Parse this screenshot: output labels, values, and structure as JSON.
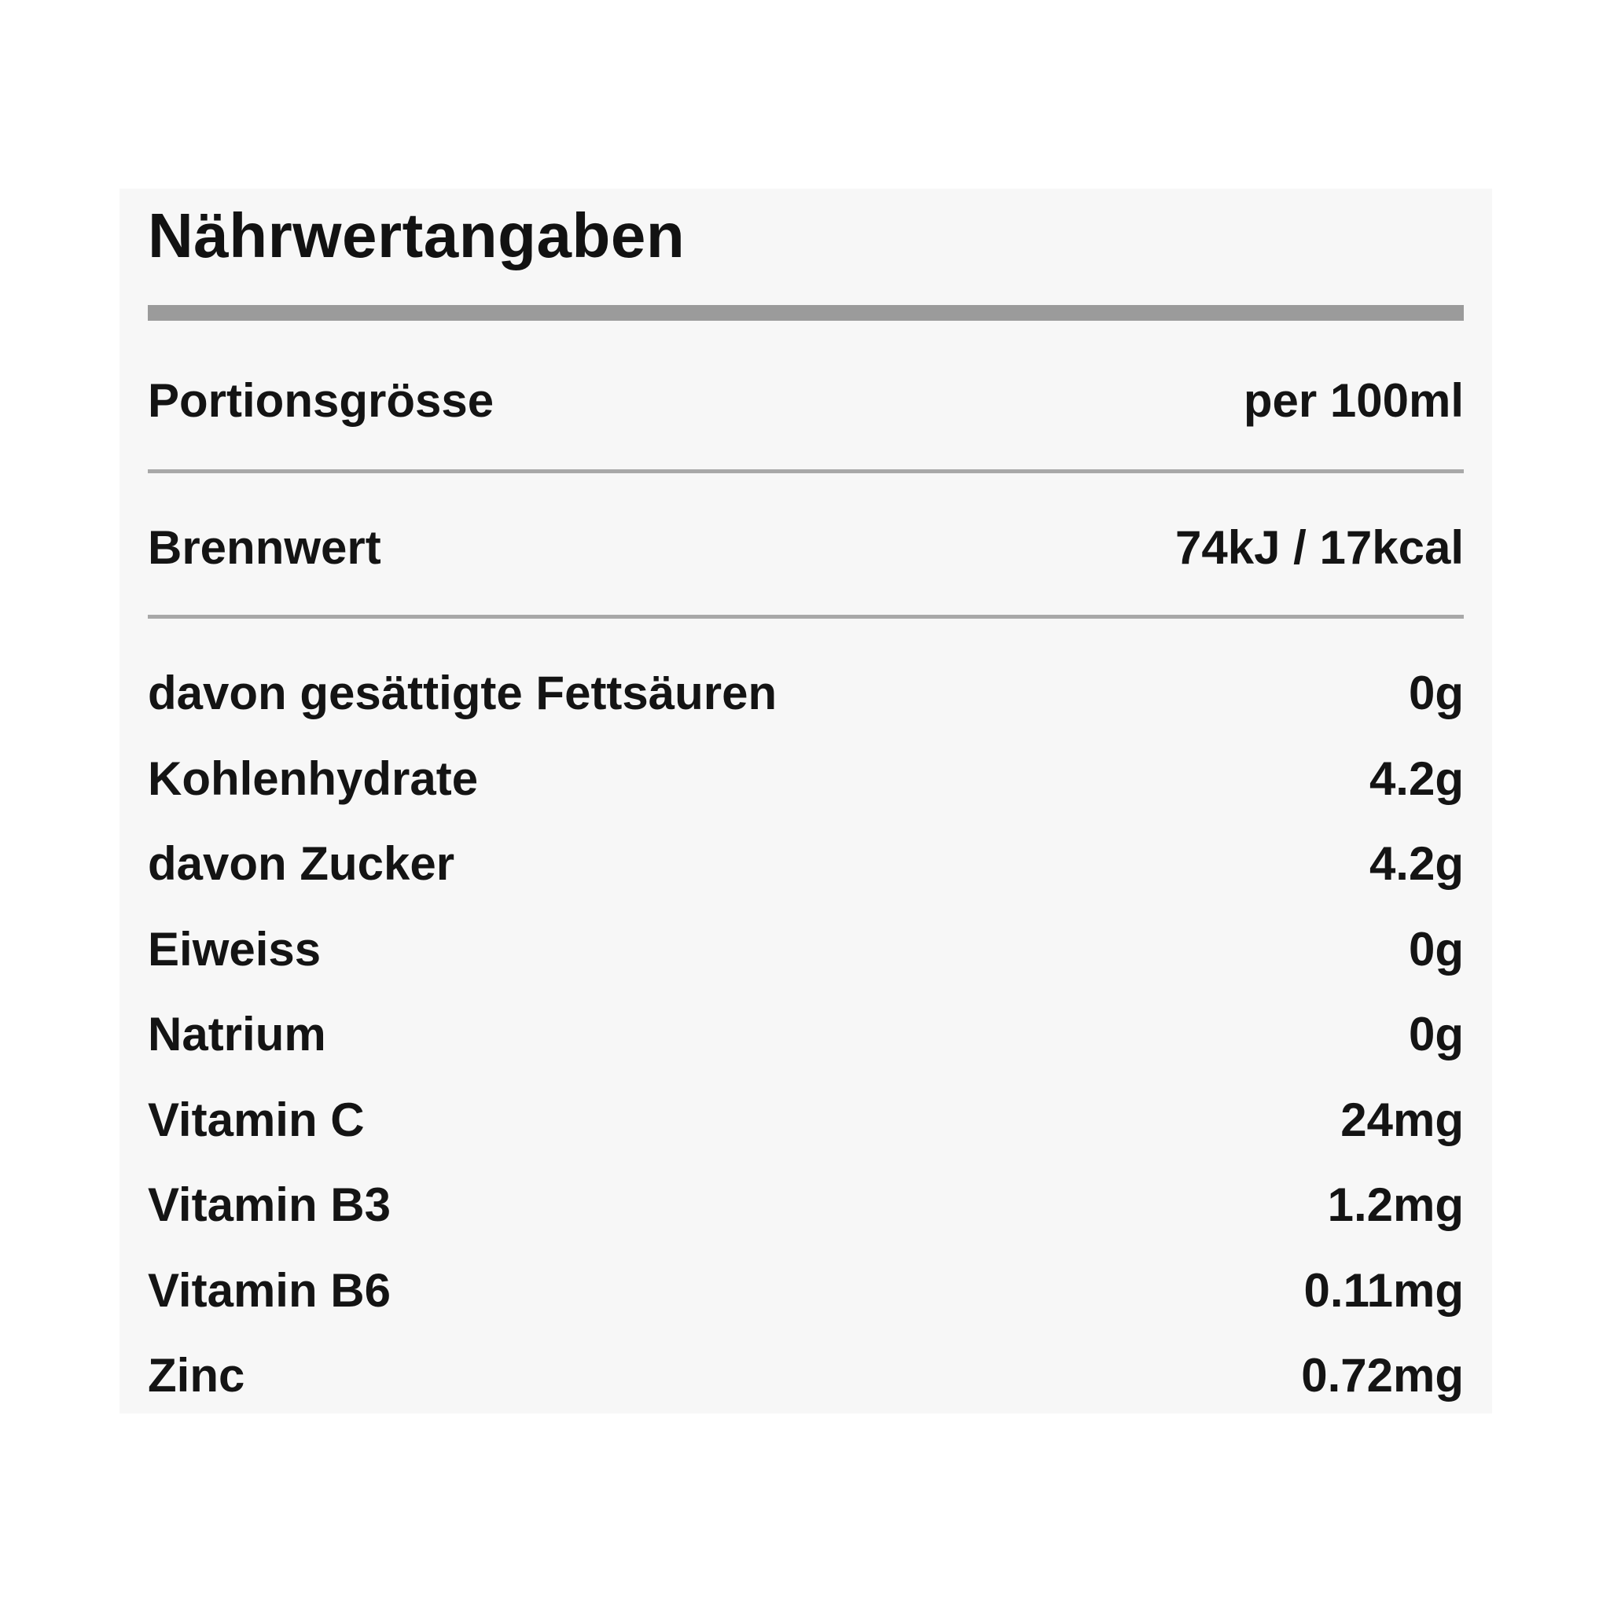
{
  "nutrition": {
    "title": "Nährwertangaben",
    "serving": {
      "label": "Portionsgrösse",
      "value": "per 100ml"
    },
    "energy": {
      "label": "Brennwert",
      "value": "74kJ / 17kcal"
    },
    "rows": [
      {
        "label": "davon gesättigte Fettsäuren",
        "value": "0g"
      },
      {
        "label": "Kohlenhydrate",
        "value": "4.2g"
      },
      {
        "label": "davon Zucker",
        "value": "4.2g"
      },
      {
        "label": "Eiweiss",
        "value": "0g"
      },
      {
        "label": "Natrium",
        "value": "0g"
      },
      {
        "label": "Vitamin C",
        "value": "24mg"
      },
      {
        "label": "Vitamin B3",
        "value": "1.2mg"
      },
      {
        "label": "Vitamin B6",
        "value": "0.11mg"
      },
      {
        "label": "Zinc",
        "value": "0.72mg"
      }
    ],
    "colors": {
      "page_bg": "#ffffff",
      "card_bg": "#f7f7f7",
      "text": "#141414",
      "thick_bar": "#9b9b9b",
      "thin_line": "#a8a8a8"
    }
  }
}
